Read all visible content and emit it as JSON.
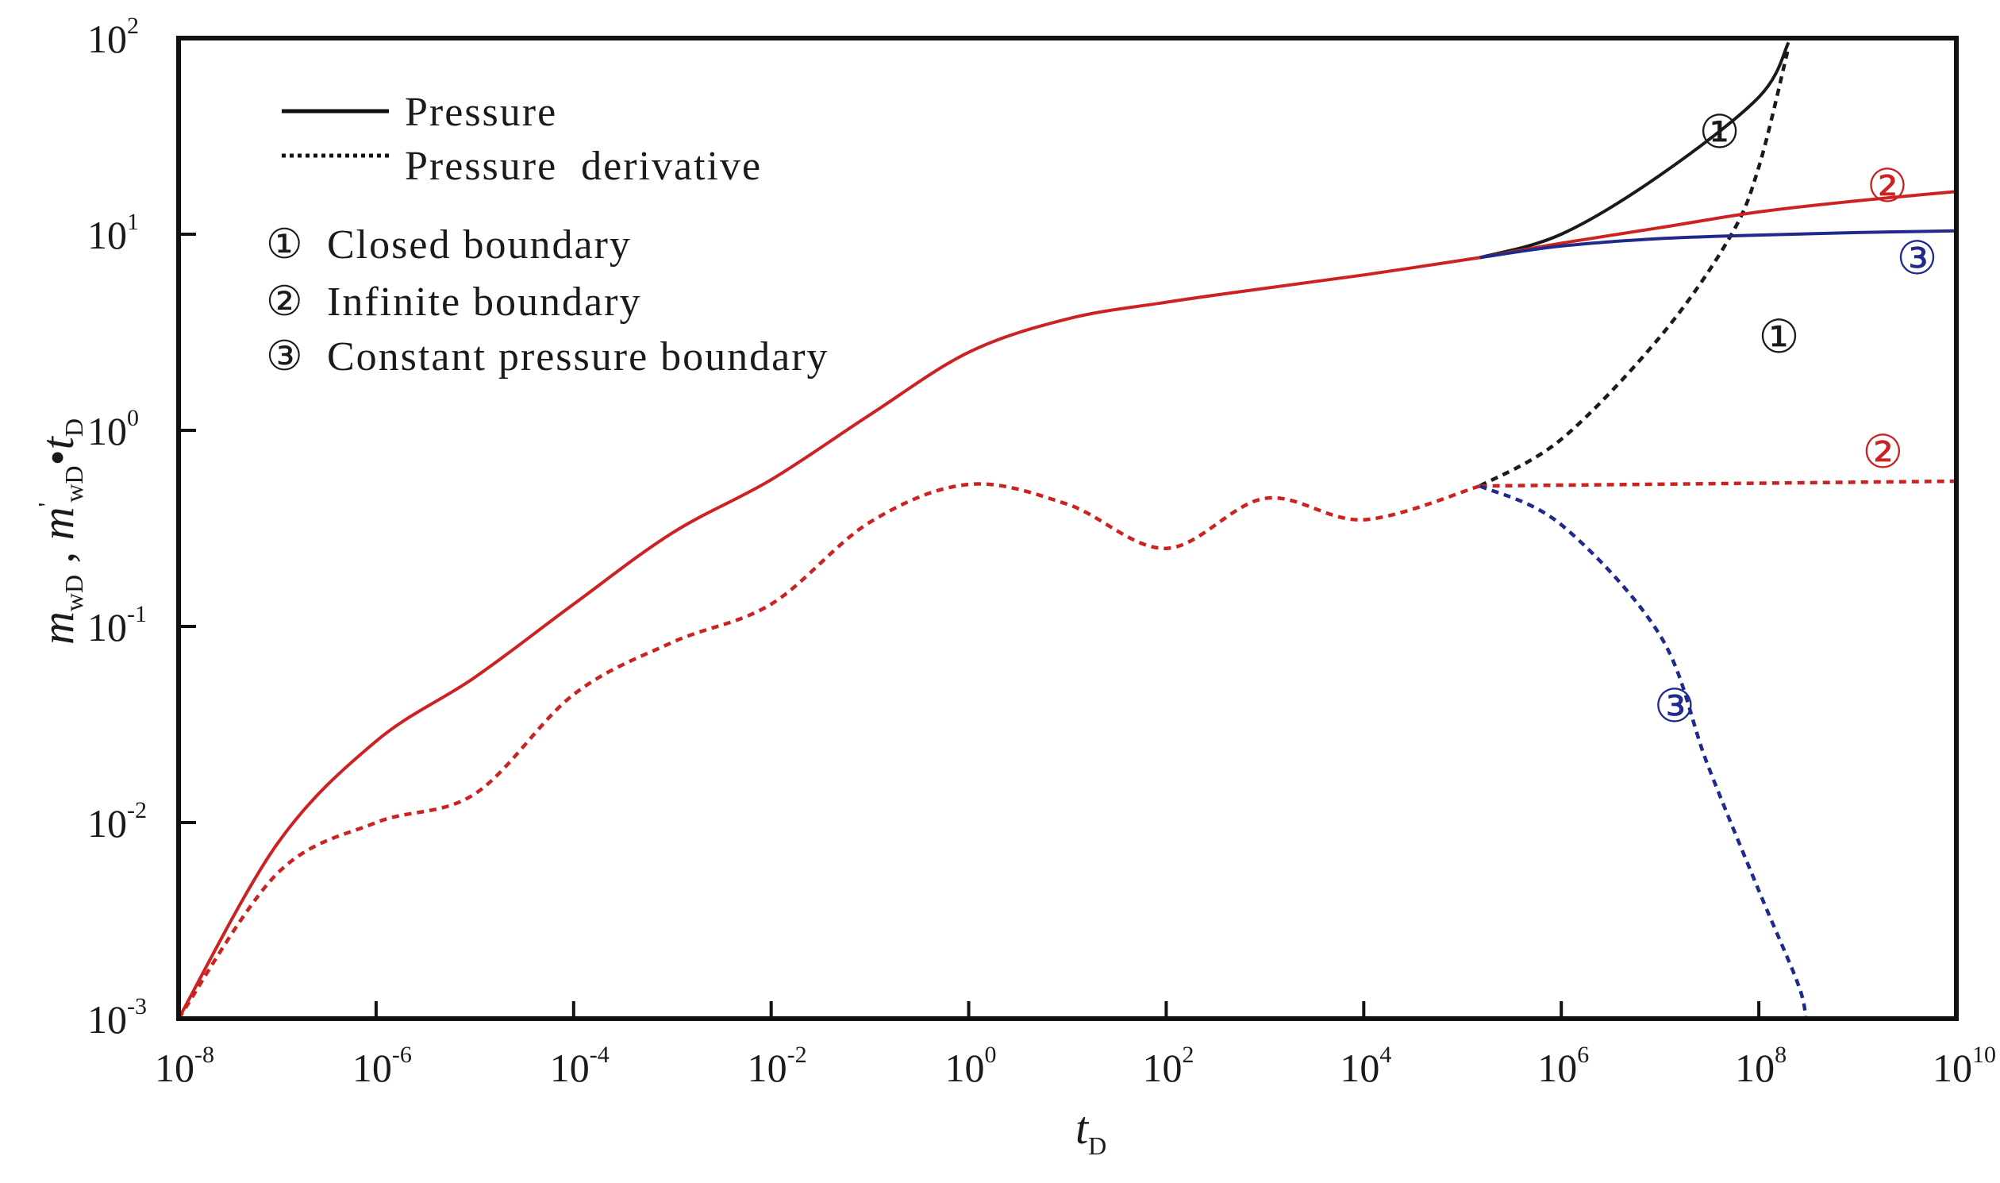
{
  "chart_data": {
    "type": "line",
    "title": "",
    "x_scale": "log",
    "y_scale": "log",
    "xlim": [
      1e-08,
      10000000000.0
    ],
    "ylim": [
      0.001,
      100
    ],
    "x_ticks": [
      {
        "base": "10",
        "exp": "-8",
        "value": 1e-08
      },
      {
        "base": "10",
        "exp": "-6",
        "value": 1e-06
      },
      {
        "base": "10",
        "exp": "-4",
        "value": 0.0001
      },
      {
        "base": "10",
        "exp": "-2",
        "value": 0.01
      },
      {
        "base": "10",
        "exp": "0",
        "value": 1
      },
      {
        "base": "10",
        "exp": "2",
        "value": 100
      },
      {
        "base": "10",
        "exp": "4",
        "value": 10000.0
      },
      {
        "base": "10",
        "exp": "6",
        "value": 1000000.0
      },
      {
        "base": "10",
        "exp": "8",
        "value": 100000000.0
      },
      {
        "base": "10",
        "exp": "10",
        "value": 10000000000.0
      }
    ],
    "y_ticks": [
      {
        "base": "10",
        "exp": "-3",
        "value": 0.001
      },
      {
        "base": "10",
        "exp": "-2",
        "value": 0.01
      },
      {
        "base": "10",
        "exp": "-1",
        "value": 0.1
      },
      {
        "base": "10",
        "exp": "0",
        "value": 1
      },
      {
        "base": "10",
        "exp": "1",
        "value": 10
      },
      {
        "base": "10",
        "exp": "2",
        "value": 100
      }
    ],
    "xlabel": {
      "main": "t",
      "sub": "D"
    },
    "ylabel": {
      "m1": "m",
      "s1": "wD",
      "sep": " , ",
      "m2": "m",
      "p2": "'",
      "s2": "wD",
      "dot": "•",
      "m3": "t",
      "s3": "D"
    },
    "legend": {
      "style_entries": [
        {
          "label": "Pressure",
          "style": "solid"
        },
        {
          "label": "Pressure  derivative",
          "style": "dotted"
        }
      ],
      "case_entries": [
        {
          "marker": "①",
          "label": "Closed boundary"
        },
        {
          "marker": "②",
          "label": "Infinite boundary"
        },
        {
          "marker": "③",
          "label": "Constant pressure boundary"
        }
      ]
    },
    "series": [
      {
        "name": "Common pressure (all boundaries)",
        "kind": "pressure",
        "color": "#cc2222",
        "style": "solid",
        "points": [
          [
            1e-08,
            0.001
          ],
          [
            1e-07,
            0.0078
          ],
          [
            1e-06,
            0.026
          ],
          [
            1e-05,
            0.055
          ],
          [
            0.0001,
            0.13
          ],
          [
            0.001,
            0.3
          ],
          [
            0.01,
            0.56
          ],
          [
            0.1,
            1.2
          ],
          [
            1,
            2.5
          ],
          [
            10,
            3.7
          ],
          [
            100,
            4.5
          ],
          [
            1000,
            5.3
          ],
          [
            10000.0,
            6.2
          ],
          [
            150000.0,
            7.6
          ]
        ]
      },
      {
        "name": "Common derivative (all boundaries)",
        "kind": "derivative",
        "color": "#cc2222",
        "style": "dotted",
        "points": [
          [
            1e-08,
            0.001
          ],
          [
            1e-07,
            0.0055
          ],
          [
            1e-06,
            0.01
          ],
          [
            1e-05,
            0.014
          ],
          [
            0.0001,
            0.045
          ],
          [
            0.001,
            0.083
          ],
          [
            0.01,
            0.13
          ],
          [
            0.1,
            0.34
          ],
          [
            1,
            0.53
          ],
          [
            10,
            0.42
          ],
          [
            100,
            0.25
          ],
          [
            1000,
            0.45
          ],
          [
            10000.0,
            0.35
          ],
          [
            150000.0,
            0.52
          ]
        ]
      },
      {
        "name": "Closed boundary pressure",
        "marker": "①",
        "kind": "pressure",
        "color": "#1a1a1a",
        "style": "solid",
        "points": [
          [
            150000.0,
            7.6
          ],
          [
            1000000.0,
            10
          ],
          [
            10000000.0,
            20
          ],
          [
            100000000.0,
            50
          ],
          [
            200000000.0,
            95
          ]
        ]
      },
      {
        "name": "Closed boundary derivative",
        "marker": "①",
        "kind": "derivative",
        "color": "#1a1a1a",
        "style": "dotted",
        "points": [
          [
            150000.0,
            0.52
          ],
          [
            1000000.0,
            0.9
          ],
          [
            10000000.0,
            3.0
          ],
          [
            50000000.0,
            9.5
          ],
          [
            100000000.0,
            22
          ],
          [
            200000000.0,
            90
          ]
        ]
      },
      {
        "name": "Infinite boundary pressure",
        "marker": "②",
        "kind": "pressure",
        "color": "#cc2222",
        "style": "solid",
        "points": [
          [
            150000.0,
            7.6
          ],
          [
            1000000.0,
            9.0
          ],
          [
            10000000.0,
            10.8
          ],
          [
            100000000.0,
            13.0
          ],
          [
            1000000000.0,
            14.8
          ],
          [
            10000000000.0,
            16.5
          ]
        ]
      },
      {
        "name": "Infinite boundary derivative",
        "marker": "②",
        "kind": "derivative",
        "color": "#cc2222",
        "style": "dotted",
        "points": [
          [
            150000.0,
            0.52
          ],
          [
            10000000000.0,
            0.55
          ]
        ]
      },
      {
        "name": "Constant pressure boundary pressure",
        "marker": "③",
        "kind": "pressure",
        "color": "#1f2a8c",
        "style": "solid",
        "points": [
          [
            150000.0,
            7.6
          ],
          [
            1000000.0,
            8.7
          ],
          [
            10000000.0,
            9.5
          ],
          [
            100000000.0,
            9.9
          ],
          [
            1000000000.0,
            10.2
          ],
          [
            10000000000.0,
            10.4
          ]
        ]
      },
      {
        "name": "Constant pressure boundary derivative",
        "marker": "③",
        "kind": "derivative",
        "color": "#1f2a8c",
        "style": "dotted",
        "points": [
          [
            150000.0,
            0.52
          ],
          [
            1000000.0,
            0.33
          ],
          [
            10000000.0,
            0.09
          ],
          [
            30000000.0,
            0.02
          ],
          [
            100000000.0,
            0.0045
          ],
          [
            250000000.0,
            0.0015
          ],
          [
            300000000.0,
            0.001
          ]
        ]
      }
    ],
    "annotations": [
      {
        "text": "①",
        "color": "#1a1a1a",
        "x": 40000000.0,
        "y": 32
      },
      {
        "text": "②",
        "color": "#cc2222",
        "x": 2000000000.0,
        "y": 17
      },
      {
        "text": "③",
        "color": "#1f2a8c",
        "x": 4000000000.0,
        "y": 7.3
      },
      {
        "text": "①",
        "color": "#1a1a1a",
        "x": 160000000.0,
        "y": 2.9
      },
      {
        "text": "②",
        "color": "#cc2222",
        "x": 1800000000.0,
        "y": 0.75
      },
      {
        "text": "③",
        "color": "#1f2a8c",
        "x": 14000000.0,
        "y": 0.038
      }
    ]
  }
}
